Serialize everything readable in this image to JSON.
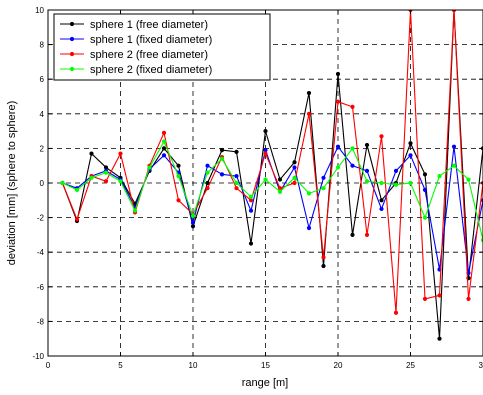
{
  "chart_data": {
    "type": "line",
    "xlabel": "range [m]",
    "ylabel": "deviation [mm] (sphere to sphere)",
    "xlim": [
      0,
      30
    ],
    "ylim": [
      -10,
      10
    ],
    "x_ticks": [
      0,
      5,
      10,
      15,
      20,
      25,
      30
    ],
    "x_tick_labels": [
      "0",
      "5",
      "10",
      "15",
      "20",
      "25",
      "30"
    ],
    "y_ticks": [
      -10,
      -8,
      -6,
      -4,
      -2,
      0,
      2,
      4,
      6,
      8,
      10
    ],
    "y_tick_labels": [
      "-10",
      "-8",
      "-6",
      "-4",
      "-2",
      "0",
      "2",
      "4",
      "6",
      "8",
      "10"
    ],
    "grid": "dashed",
    "legend_position": "top-left",
    "x": [
      1,
      2,
      3,
      4,
      5,
      6,
      7,
      8,
      9,
      10,
      11,
      12,
      13,
      14,
      15,
      16,
      17,
      18,
      19,
      20,
      21,
      22,
      23,
      24,
      25,
      26,
      27,
      28,
      29,
      30
    ],
    "series": [
      {
        "name": "sphere 1 (free diameter)",
        "color": "#000000",
        "values": [
          0.0,
          -2.2,
          1.7,
          0.9,
          0.3,
          -1.2,
          0.7,
          2.0,
          1.0,
          -2.5,
          0.0,
          1.9,
          1.8,
          -3.5,
          3.0,
          0.2,
          1.2,
          5.2,
          -4.8,
          6.3,
          -3.0,
          2.2,
          -1.0,
          0.0,
          2.3,
          0.5,
          -9.0,
          10.0,
          -5.5,
          2.0
        ]
      },
      {
        "name": "sphere 1 (fixed diameter)",
        "color": "#0000ff",
        "values": [
          0.0,
          -0.3,
          0.4,
          0.7,
          0.2,
          -1.4,
          0.8,
          1.6,
          0.6,
          -2.3,
          1.0,
          0.5,
          0.4,
          -1.6,
          1.9,
          -0.5,
          0.9,
          -2.6,
          0.3,
          2.1,
          1.0,
          0.7,
          -1.5,
          0.7,
          1.6,
          -0.4,
          -5.0,
          2.1,
          -5.2,
          -1.0
        ]
      },
      {
        "name": "sphere 2 (free diameter)",
        "color": "#ff0000",
        "values": [
          0.0,
          -2.1,
          0.4,
          0.1,
          1.7,
          -1.7,
          1.0,
          2.9,
          -1.0,
          -1.8,
          -0.3,
          1.5,
          -0.3,
          -1.0,
          1.7,
          -0.3,
          0.0,
          4.0,
          -4.3,
          4.7,
          4.4,
          -3.0,
          2.7,
          -7.5,
          10.0,
          -6.7,
          -6.5,
          10.0,
          -6.7,
          0.0
        ]
      },
      {
        "name": "sphere 2 (fixed diameter)",
        "color": "#00ff00",
        "values": [
          0.0,
          -0.4,
          0.3,
          0.6,
          0.1,
          -1.6,
          0.9,
          2.4,
          0.4,
          -1.9,
          0.6,
          1.4,
          0.0,
          -0.8,
          0.2,
          -0.5,
          0.3,
          -0.6,
          -0.3,
          0.9,
          2.0,
          0.1,
          0.0,
          -0.1,
          0.0,
          -2.0,
          0.4,
          1.0,
          0.2,
          -3.3
        ]
      }
    ]
  }
}
